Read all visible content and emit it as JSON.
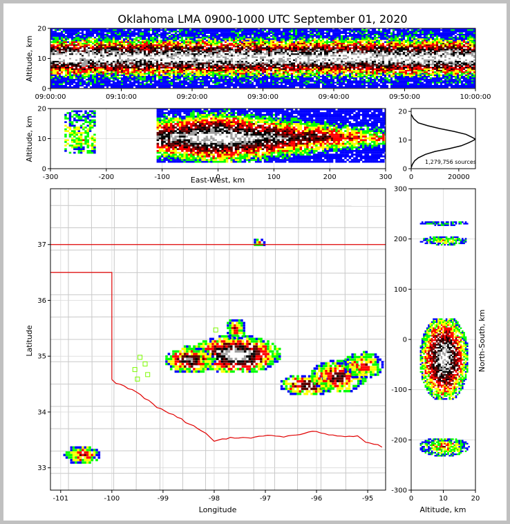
{
  "chart_data": [
    {
      "id": "time_altitude",
      "type": "heatmap",
      "title": "Oklahoma LMA 0900-1000 UTC September 01, 2020",
      "xlabel": "",
      "ylabel": "Altitude, km",
      "x_ticks": [
        "09:00:00",
        "09:10:00",
        "09:20:00",
        "09:30:00",
        "09:40:00",
        "09:50:00",
        "10:00:00"
      ],
      "y_ticks": [
        0,
        10,
        20
      ],
      "xlim": [
        "09:00:00",
        "10:00:00"
      ],
      "ylim": [
        0,
        20
      ],
      "grid": true,
      "core_altitude_km": [
        6,
        14
      ],
      "peak_altitude_km": 10
    },
    {
      "id": "ew_altitude",
      "type": "heatmap",
      "xlabel": "East-West, km",
      "ylabel": "Altitude, km",
      "x_ticks": [
        -300,
        -200,
        -100,
        0,
        100,
        200,
        300
      ],
      "y_ticks": [
        0,
        10,
        20
      ],
      "xlim": [
        -300,
        300
      ],
      "ylim": [
        0,
        20
      ],
      "grid": true,
      "clusters": [
        {
          "x_range_km": [
            -275,
            -220
          ],
          "alt_range_km": [
            5,
            19
          ]
        },
        {
          "x_range_km": [
            -110,
            300
          ],
          "alt_range_km": [
            2,
            20
          ],
          "peak_x_km": 0
        }
      ]
    },
    {
      "id": "altitude_histogram",
      "type": "line",
      "annotation": "1,279,756 sources",
      "x_ticks": [
        0,
        20000
      ],
      "y_ticks": [
        0,
        10,
        20
      ],
      "xlim": [
        0,
        27000
      ],
      "ylim": [
        0,
        21
      ],
      "x": [
        0,
        500,
        1500,
        3000,
        6000,
        10000,
        16000,
        21000,
        24000,
        26000,
        27000,
        25500,
        23000,
        18000,
        12000,
        7000,
        3000,
        1000,
        0
      ],
      "y": [
        0.3,
        1.5,
        2.8,
        3.8,
        5,
        6,
        7,
        8,
        9,
        9.8,
        10.3,
        11,
        12,
        13,
        14,
        15,
        16,
        17.5,
        19
      ]
    },
    {
      "id": "plan_view",
      "type": "heatmap",
      "xlabel": "Longitude",
      "ylabel": "Latitude",
      "x_ticks": [
        -101,
        -100,
        -99,
        -98,
        -97,
        -96,
        -95
      ],
      "y_ticks": [
        33,
        34,
        35,
        36,
        37
      ],
      "xlim": [
        -101.2,
        -94.65
      ],
      "ylim": [
        32.6,
        38
      ],
      "grid": true,
      "station_markers": [
        {
          "lon": -99.45,
          "lat": 34.98
        },
        {
          "lon": -99.35,
          "lat": 34.86
        },
        {
          "lon": -99.55,
          "lat": 34.76
        },
        {
          "lon": -99.3,
          "lat": 34.67
        },
        {
          "lon": -99.5,
          "lat": 34.59
        },
        {
          "lon": -97.97,
          "lat": 35.47
        }
      ]
    },
    {
      "id": "ns_altitude",
      "type": "heatmap",
      "xlabel": "Altitude, km",
      "ylabel": "North-South, km",
      "x_ticks": [
        0,
        10,
        20
      ],
      "y_ticks": [
        -300,
        -200,
        -100,
        0,
        100,
        200,
        300
      ],
      "xlim": [
        0,
        20
      ],
      "ylim": [
        -300,
        300
      ],
      "grid": true
    }
  ],
  "colors": {
    "state_border": "#e00000",
    "county_lines": "#c8c8c8",
    "histogram_line": "#000000",
    "station_marker": "#7cfc00",
    "background": "#c0c0c0",
    "density_colormap": [
      "#0000ff",
      "#00ff00",
      "#ffff00",
      "#ff0000",
      "#600000",
      "#000000",
      "#a0a0a0",
      "#ffffff"
    ]
  }
}
